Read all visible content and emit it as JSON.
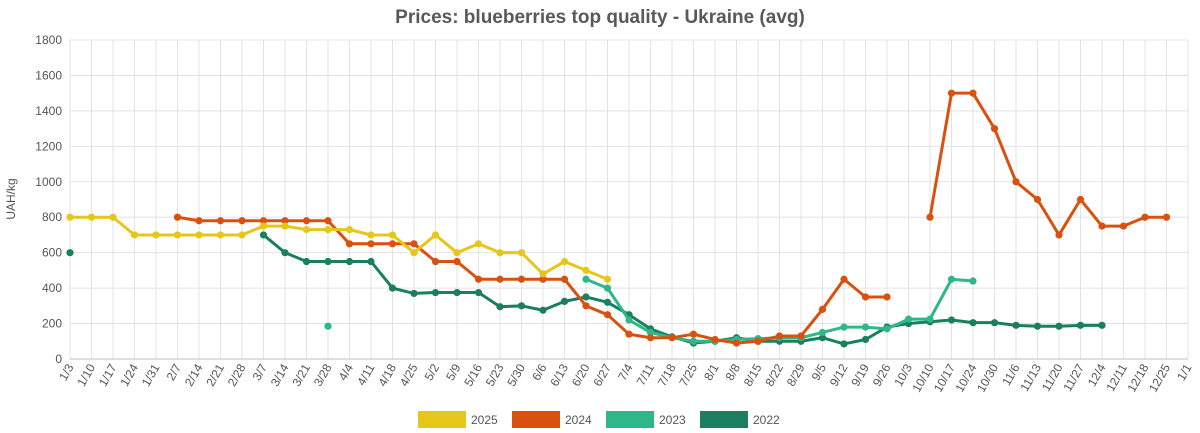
{
  "chart_data": {
    "type": "line",
    "title": "Prices: blueberries top quality - Ukraine (avg)",
    "xlabel": "",
    "ylabel": "UAH/kg",
    "ylim": [
      0,
      1800
    ],
    "yticks": [
      0,
      200,
      400,
      600,
      800,
      1000,
      1200,
      1400,
      1600,
      1800
    ],
    "grid": true,
    "legend_position": "bottom",
    "categories": [
      "1/3",
      "1/10",
      "1/17",
      "1/24",
      "1/31",
      "2/7",
      "2/14",
      "2/21",
      "2/28",
      "3/7",
      "3/14",
      "3/21",
      "3/28",
      "4/4",
      "4/11",
      "4/18",
      "4/25",
      "5/2",
      "5/9",
      "5/16",
      "5/23",
      "5/30",
      "6/6",
      "6/13",
      "6/20",
      "6/27",
      "7/4",
      "7/11",
      "7/18",
      "7/25",
      "8/1",
      "8/8",
      "8/15",
      "8/22",
      "8/29",
      "9/5",
      "9/12",
      "9/19",
      "9/26",
      "10/3",
      "10/10",
      "10/17",
      "10/24",
      "10/30",
      "11/6",
      "11/13",
      "11/20",
      "11/27",
      "12/4",
      "12/11",
      "12/18",
      "12/25",
      "1/1"
    ],
    "series": [
      {
        "name": "2025",
        "color": "#e6c619",
        "values": [
          800,
          800,
          800,
          700,
          700,
          700,
          700,
          700,
          700,
          750,
          750,
          730,
          730,
          730,
          700,
          700,
          600,
          700,
          600,
          650,
          600,
          600,
          480,
          550,
          500,
          450,
          null,
          null,
          null,
          null,
          null,
          null,
          null,
          null,
          null,
          null,
          null,
          null,
          null,
          null,
          null,
          null,
          null,
          null,
          null,
          null,
          null,
          null,
          null,
          null,
          null,
          null,
          null
        ]
      },
      {
        "name": "2024",
        "color": "#d9500f",
        "values": [
          null,
          null,
          null,
          null,
          null,
          800,
          780,
          780,
          780,
          780,
          780,
          780,
          780,
          650,
          650,
          650,
          650,
          550,
          550,
          450,
          450,
          450,
          450,
          450,
          300,
          250,
          140,
          120,
          120,
          140,
          110,
          90,
          100,
          130,
          130,
          280,
          450,
          350,
          350,
          null,
          800,
          1500,
          1500,
          1300,
          1000,
          900,
          700,
          900,
          750,
          750,
          800,
          800,
          null
        ]
      },
      {
        "name": "2023",
        "color": "#2eb88a",
        "values": [
          null,
          null,
          null,
          null,
          null,
          null,
          null,
          null,
          null,
          null,
          null,
          null,
          185,
          null,
          null,
          null,
          null,
          null,
          null,
          null,
          null,
          null,
          null,
          null,
          450,
          400,
          220,
          150,
          120,
          100,
          100,
          110,
          115,
          120,
          120,
          150,
          180,
          180,
          170,
          225,
          225,
          450,
          440,
          null,
          null,
          null,
          null,
          null,
          null,
          null,
          null,
          null,
          null
        ]
      },
      {
        "name": "2022",
        "color": "#1a7f5e",
        "values": [
          600,
          null,
          null,
          null,
          null,
          null,
          null,
          null,
          null,
          700,
          600,
          550,
          550,
          550,
          550,
          400,
          370,
          375,
          375,
          375,
          295,
          300,
          275,
          325,
          350,
          320,
          250,
          170,
          125,
          90,
          100,
          120,
          100,
          100,
          100,
          120,
          85,
          110,
          180,
          200,
          210,
          220,
          205,
          205,
          190,
          185,
          185,
          190,
          190,
          null,
          null,
          null,
          null
        ]
      }
    ]
  }
}
